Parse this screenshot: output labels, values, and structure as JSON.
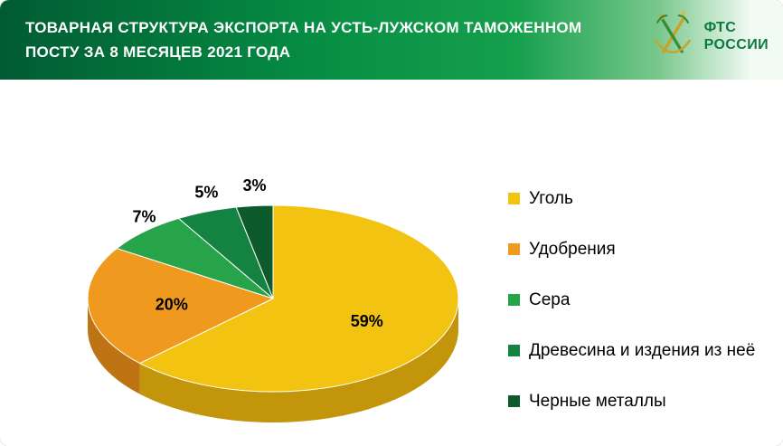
{
  "header": {
    "title_lines": [
      "ТОВАРНАЯ СТРУКТУРА ЭКСПОРТА НА УСТЬ-ЛУЖСКОМ ТАМОЖЕННОМ",
      "ПОСТУ ЗА 8 МЕСЯЦЕВ 2021 ГОДА"
    ],
    "gradient": [
      "#015b33",
      "#068d43",
      "#15a04c",
      "#79c78c",
      "#f2faf4"
    ],
    "logo": {
      "line1": "ФТС",
      "line2": "РОССИИ",
      "accent_green": "#0b7a3f",
      "accent_gold": "#c9a227"
    }
  },
  "chart_data": {
    "type": "pie",
    "style": "3d",
    "title": "ТОВАРНАЯ СТРУКТУРА ЭКСПОРТА НА УСТЬ-ЛУЖСКОМ ТАМОЖЕННОМ ПОСТУ ЗА 8 МЕСЯЦЕВ 2021 ГОДА",
    "categories": [
      "Уголь",
      "Удобрения",
      "Сера",
      "Древесина и издения из неё",
      "Черные металлы"
    ],
    "values": [
      59,
      20,
      7,
      5,
      3
    ],
    "data_labels": [
      "59%",
      "20%",
      "7%",
      "5%",
      "3%"
    ],
    "colors": [
      "#f2c311",
      "#ef9a1f",
      "#27a449",
      "#148342",
      "#0d5b2d"
    ],
    "side_colors": [
      "#c2950a",
      "#be7413",
      "#1c7e38",
      "#0f6231",
      "#09421f"
    ],
    "start_angle_deg": 0,
    "direction": "clockwise",
    "legend_position": "right"
  }
}
